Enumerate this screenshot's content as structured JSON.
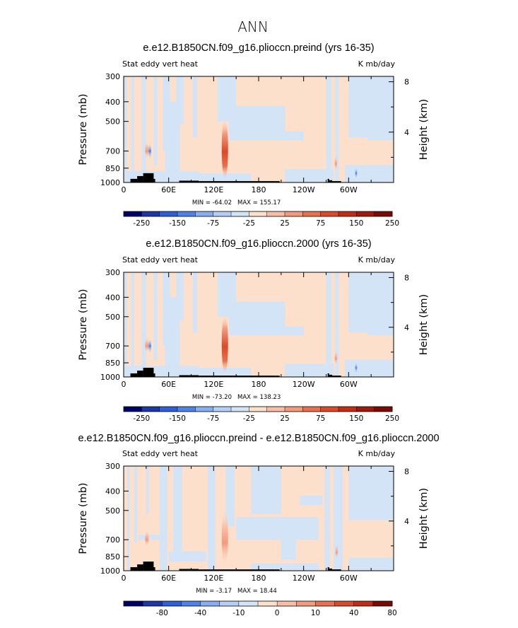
{
  "figure_title": "ANN",
  "colors": {
    "pos_light": "#fde0cc",
    "neg_light": "#d2e4f6",
    "topo": "#000000"
  },
  "chart_data": [
    {
      "type": "heatmap",
      "title": "e.e12.B1850CN.f09_g16.plioccn.preind (yrs 16-35)",
      "left_label": "Stat eddy vert heat",
      "right_label": "K mb/day",
      "ylabel": "Pressure (mb)",
      "ylabel_right": "Height (km)",
      "pressure_ticks": [
        "300",
        "400",
        "500",
        "700",
        "850",
        "1000"
      ],
      "height_ticks": [
        "8",
        "4"
      ],
      "lon_ticks": [
        "0",
        "60E",
        "120E",
        "180",
        "120W",
        "60W"
      ],
      "min_label": "MIN = -64.02",
      "max_label": "MAX = 155.17",
      "colorbar_labels": [
        "-250",
        "-150",
        "-75",
        "-25",
        "25",
        "75",
        "150",
        "250"
      ],
      "colorbar_colors": [
        "#00006b",
        "#1d36a8",
        "#2d5fd6",
        "#4d82e8",
        "#87aeef",
        "#b5cef5",
        "#d2e4f6",
        "#fde0cc",
        "#f8bda4",
        "#f29a7e",
        "#e9704f",
        "#d94a2a",
        "#c02d15",
        "#9e1a0d",
        "#7a0a04"
      ]
    },
    {
      "type": "heatmap",
      "title": "e.e12.B1850CN.f09_g16.plioccn.2000 (yrs 16-35)",
      "left_label": "Stat eddy vert heat",
      "right_label": "K mb/day",
      "ylabel": "Pressure (mb)",
      "ylabel_right": "Height (km)",
      "pressure_ticks": [
        "300",
        "400",
        "500",
        "700",
        "850",
        "1000"
      ],
      "height_ticks": [
        "8",
        "4"
      ],
      "lon_ticks": [
        "0",
        "60E",
        "120E",
        "180",
        "120W",
        "60W"
      ],
      "min_label": "MIN = -73.20",
      "max_label": "MAX = 138.23",
      "colorbar_labels": [
        "-250",
        "-150",
        "-75",
        "-25",
        "25",
        "75",
        "150",
        "250"
      ],
      "colorbar_colors": [
        "#00006b",
        "#1d36a8",
        "#2d5fd6",
        "#4d82e8",
        "#87aeef",
        "#b5cef5",
        "#d2e4f6",
        "#fde0cc",
        "#f8bda4",
        "#f29a7e",
        "#e9704f",
        "#d94a2a",
        "#c02d15",
        "#9e1a0d",
        "#7a0a04"
      ]
    },
    {
      "type": "heatmap",
      "title": "e.e12.B1850CN.f09_g16.plioccn.preind - e.e12.B1850CN.f09_g16.plioccn.2000",
      "left_label": "Stat eddy vert heat",
      "right_label": "K mb/day",
      "ylabel": "Pressure (mb)",
      "ylabel_right": "Height (km)",
      "pressure_ticks": [
        "300",
        "400",
        "500",
        "700",
        "850",
        "1000"
      ],
      "height_ticks": [
        "8",
        "4"
      ],
      "lon_ticks": [
        "0",
        "60E",
        "120E",
        "180",
        "120W",
        "60W"
      ],
      "min_label": "MIN = -3.17",
      "max_label": "MAX = 18.44",
      "colorbar_labels": [
        "-80",
        "-40",
        "-10",
        "0",
        "10",
        "40",
        "80"
      ],
      "colorbar_colors": [
        "#00006b",
        "#1d36a8",
        "#2d5fd6",
        "#4d82e8",
        "#87aeef",
        "#b5cef5",
        "#d2e4f6",
        "#fde0cc",
        "#f8bda4",
        "#f29a7e",
        "#e9704f",
        "#d94a2a",
        "#c02d15",
        "#7a0a04"
      ]
    }
  ]
}
